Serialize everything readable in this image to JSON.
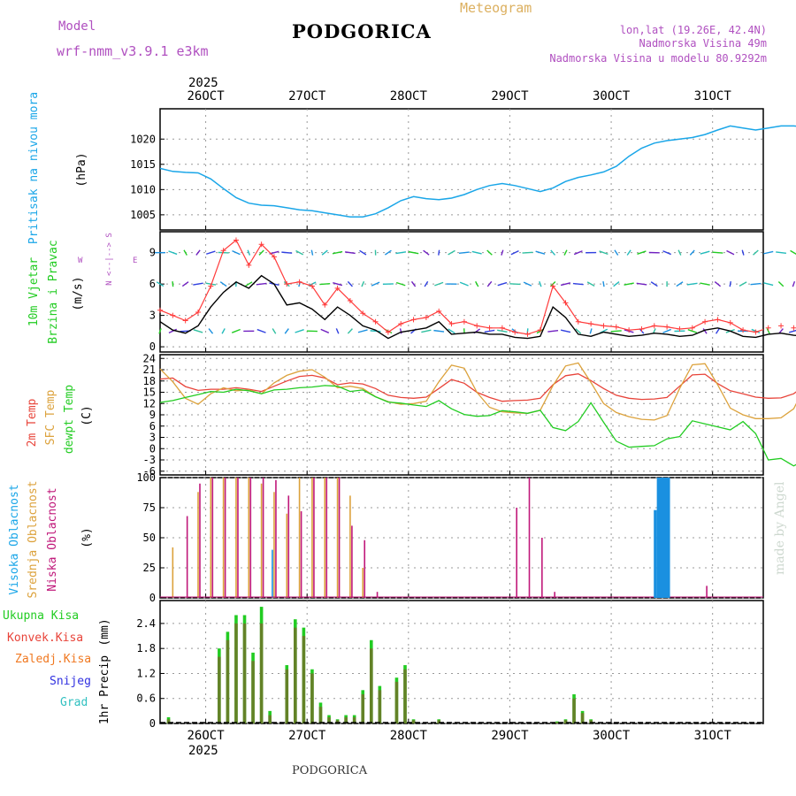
{
  "header": {
    "model_label": "Model",
    "model_name": "wrf-nmm_v3.9.1  e3km",
    "city": "PODGORICA",
    "product": "Meteogram",
    "coords": "lon,lat (19.26E, 42.4N)",
    "elevation": "Nadmorska Visina 49m",
    "model_elevation": "Nadmorska Visina u modelu 80.9292m",
    "footer_city": "PODGORICA",
    "credit": "made by Angel",
    "year": "2025"
  },
  "colors": {
    "pressure": "#1aa6e8",
    "wind_speed": "#000000",
    "gust": "#ff3b3b",
    "temp2m": "#e8443a",
    "sfc_temp": "#dca23c",
    "dewpt": "#22cc22",
    "high_cloud": "#1a90e0",
    "mid_cloud": "#dca23c",
    "low_cloud": "#c0187a",
    "ukupna": "#22cc22",
    "konvek": "#e8443a",
    "zaledj": "#f07820",
    "snijeg": "#3030e0",
    "grad": "#30c0c0",
    "legend_violet": "#b050c0"
  },
  "chart_data": [
    {
      "id": "pressure",
      "type": "line",
      "title": "Pritisak na nivou mora",
      "ylabel": "(hPa)",
      "ylim": [
        1002,
        1026
      ],
      "yticks": [
        "1005",
        "1010",
        "1015",
        "1020"
      ],
      "ytick_values": [
        1005,
        1010,
        1015,
        1020
      ],
      "x_start_day": 25.55,
      "x_step_hours": 3,
      "series": [
        {
          "name": "SLP",
          "values": [
            1014.2,
            1013.6,
            1013.4,
            1013.3,
            1012.1,
            1010.2,
            1008.4,
            1007.3,
            1006.9,
            1006.8,
            1006.4,
            1006.0,
            1005.8,
            1005.4,
            1005.0,
            1004.6,
            1004.6,
            1005.2,
            1006.4,
            1007.8,
            1008.6,
            1008.2,
            1008.0,
            1008.3,
            1009.0,
            1010.0,
            1010.8,
            1011.2,
            1010.8,
            1010.2,
            1009.6,
            1010.3,
            1011.6,
            1012.4,
            1012.9,
            1013.5,
            1014.6,
            1016.6,
            1018.2,
            1019.2,
            1019.7,
            1020.0,
            1020.3,
            1020.9,
            1021.8,
            1022.6,
            1022.2,
            1021.8,
            1022.2,
            1022.6,
            1022.6,
            1022.4,
            1022.1,
            1022.6,
            1022.5,
            1022.0,
            1021.5,
            1020.4,
            1020.2,
            1020.3,
            1020.5,
            1020.1,
            1019.6,
            1019.1,
            1018.6,
            1018.5,
            1018.3,
            1017.6,
            1017.0
          ]
        }
      ]
    },
    {
      "id": "wind",
      "type": "line",
      "title": "10m Vjetar",
      "subtitle": "Brzina i Pravac",
      "ylabel": "(m/s)",
      "ylim": [
        -0.5,
        11
      ],
      "yticks": [
        "0",
        "3",
        "6",
        "9"
      ],
      "ytick_values": [
        0,
        3,
        6,
        9
      ],
      "direction_key": [
        "N",
        "<--|-->",
        "S"
      ],
      "direction_key_ew": [
        "W",
        "E"
      ],
      "x_start_day": 25.55,
      "x_step_hours": 3,
      "series": [
        {
          "name": "speed",
          "values": [
            2.4,
            1.6,
            1.3,
            2.0,
            3.8,
            5.2,
            6.2,
            5.6,
            6.8,
            6.0,
            4.0,
            4.2,
            3.6,
            2.6,
            3.8,
            3.0,
            2.0,
            1.6,
            0.8,
            1.4,
            1.6,
            1.8,
            2.4,
            1.2,
            1.3,
            1.4,
            1.2,
            1.2,
            0.9,
            0.8,
            1.0,
            3.8,
            2.8,
            1.2,
            1.0,
            1.4,
            1.2,
            1.0,
            1.1,
            1.3,
            1.2,
            1.0,
            1.1,
            1.6,
            1.8,
            1.5,
            1.0,
            0.9,
            1.2,
            1.3,
            1.1,
            1.0,
            1.2,
            1.4,
            1.2,
            1.2,
            1.8,
            1.2,
            0.9,
            0.7,
            0.8,
            1.1,
            1.3,
            1.5,
            1.2,
            1.1,
            1.0,
            1.2,
            1.1
          ]
        },
        {
          "name": "gust",
          "values": [
            3.5,
            3.0,
            2.5,
            3.3,
            5.8,
            9.2,
            10.2,
            7.8,
            9.8,
            8.6,
            6.0,
            6.2,
            5.8,
            4.0,
            5.6,
            4.4,
            3.2,
            2.4,
            1.4,
            2.2,
            2.6,
            2.8,
            3.4,
            2.2,
            2.4,
            2.0,
            1.8,
            1.8,
            1.4,
            1.2,
            1.6,
            5.8,
            4.2,
            2.4,
            2.2,
            2.0,
            1.9,
            1.6,
            1.7,
            2.0,
            1.9,
            1.7,
            1.8,
            2.4,
            2.6,
            2.3,
            1.6,
            1.4,
            1.8,
            2.0,
            1.8,
            1.6,
            1.8,
            2.1,
            1.9,
            1.9,
            2.6,
            1.9,
            1.5,
            1.2,
            1.4,
            1.7,
            2.0,
            2.2,
            1.9,
            1.7,
            1.6,
            1.9,
            1.7
          ]
        }
      ]
    },
    {
      "id": "temperature",
      "type": "line",
      "title": "2m Temp",
      "subtitle": "SFC Temp",
      "subtitle2": "dewpt Temp",
      "ylabel": "(C)",
      "ylim": [
        -7,
        25
      ],
      "yticks": [
        "-6",
        "-3",
        "0",
        "3",
        "6",
        "9",
        "12",
        "15",
        "18",
        "21",
        "24"
      ],
      "ytick_values": [
        -6,
        -3,
        0,
        3,
        6,
        9,
        12,
        15,
        18,
        21,
        24
      ],
      "x_start_day": 25.55,
      "x_step_hours": 3,
      "series": [
        {
          "name": "2m Temp",
          "values": [
            18.5,
            18.8,
            16.5,
            15.5,
            15.8,
            15.8,
            16.2,
            15.8,
            15.2,
            16.6,
            18.0,
            19.2,
            19.5,
            18.8,
            17.0,
            17.5,
            17.2,
            16.0,
            14.2,
            13.6,
            13.4,
            13.7,
            16.0,
            18.4,
            17.4,
            15.0,
            13.6,
            12.6,
            12.8,
            12.9,
            13.4,
            17.0,
            19.4,
            19.9,
            18.1,
            16.0,
            14.2,
            13.4,
            13.1,
            13.2,
            13.6,
            16.6,
            19.6,
            19.8,
            17.3,
            15.4,
            14.6,
            13.7,
            13.4,
            13.5,
            14.6,
            17.2,
            19.8,
            19.9,
            17.1,
            15.4,
            15.1,
            14.4,
            14.1,
            14.4,
            15.1,
            17.7,
            19.0,
            17.6,
            15.5,
            14.7,
            15.0,
            16.6,
            18.2
          ]
        },
        {
          "name": "SFC Temp",
          "values": [
            21.2,
            17.8,
            13.4,
            11.8,
            14.6,
            16.2,
            15.4,
            15.6,
            14.6,
            17.5,
            19.5,
            20.6,
            21.0,
            19.0,
            16.2,
            16.6,
            16.0,
            13.8,
            12.5,
            11.8,
            12.0,
            12.6,
            17.8,
            22.2,
            21.4,
            15.0,
            11.0,
            9.8,
            9.5,
            9.4,
            10.2,
            16.8,
            22.0,
            22.8,
            17.6,
            12.0,
            9.6,
            8.5,
            7.8,
            7.6,
            8.8,
            16.0,
            22.3,
            22.6,
            17.0,
            10.8,
            9.0,
            8.0,
            8.0,
            8.2,
            10.6,
            17.2,
            22.6,
            22.4,
            16.0,
            11.4,
            10.2,
            9.6,
            9.8,
            10.2,
            12.0,
            16.4,
            20.4,
            18.4,
            13.6,
            11.0,
            11.4,
            15.6,
            22.0
          ]
        },
        {
          "name": "dewpt Temp",
          "values": [
            12.3,
            12.8,
            13.6,
            14.4,
            15.2,
            15.0,
            15.8,
            15.4,
            14.6,
            15.6,
            15.8,
            16.2,
            16.4,
            16.8,
            16.6,
            15.2,
            15.6,
            13.8,
            12.4,
            12.1,
            11.6,
            11.2,
            12.8,
            10.6,
            9.1,
            8.6,
            8.8,
            10.1,
            9.8,
            9.4,
            10.2,
            5.6,
            4.8,
            7.2,
            12.2,
            7.0,
            2.0,
            0.4,
            0.6,
            0.8,
            2.6,
            3.2,
            7.4,
            6.6,
            5.8,
            5.0,
            7.2,
            4.0,
            -3.0,
            -2.6,
            -4.6,
            -2.8,
            3.0,
            4.6,
            5.0,
            5.6,
            9.2,
            11.6,
            11.4,
            12.4,
            12.6,
            12.2,
            12.4,
            12.6,
            12.2,
            12.4,
            11.8,
            12.4,
            12.6
          ]
        }
      ]
    },
    {
      "id": "clouds",
      "type": "bar",
      "title": "Visoka Oblacnost",
      "subtitle": "Srednja Oblacnost",
      "subtitle2": "Niska Oblacnost",
      "ylabel": "(%)",
      "ylim": [
        0,
        100
      ],
      "yticks": [
        "0",
        "25",
        "50",
        "75",
        "100"
      ],
      "ytick_values": [
        0,
        25,
        50,
        75,
        100
      ],
      "x_start_day": 25.55,
      "x_step_hours": 3,
      "series": [
        {
          "name": "high",
          "values": [
            0,
            0,
            0,
            0,
            0,
            0,
            0,
            0,
            0,
            40,
            0,
            0,
            0,
            0,
            0,
            0,
            0,
            0,
            0,
            0,
            0,
            0,
            0,
            0,
            0,
            0,
            0,
            0,
            0,
            0,
            0,
            0,
            0,
            0,
            0,
            0,
            0,
            0,
            0,
            0,
            0,
            0,
            0,
            0,
            0,
            0,
            0,
            0,
            0,
            0,
            0,
            0,
            0,
            0,
            0,
            0,
            0,
            0,
            0,
            0,
            0,
            0,
            0,
            0,
            0,
            0,
            0,
            0,
            0
          ]
        },
        {
          "name": "mid",
          "values": [
            0,
            42,
            0,
            88,
            100,
            100,
            100,
            100,
            95,
            88,
            70,
            100,
            100,
            100,
            100,
            85,
            25,
            0,
            0,
            0,
            0,
            0,
            0,
            0,
            0,
            0,
            0,
            0,
            0,
            0,
            0,
            0,
            0,
            0,
            0,
            0,
            0,
            0,
            0,
            0,
            0,
            0,
            0,
            0,
            0,
            0,
            0,
            0,
            0,
            0,
            0,
            0,
            0,
            0,
            0,
            0,
            0,
            0,
            0,
            100,
            95,
            100,
            0,
            0,
            100,
            100,
            100,
            100,
            100
          ]
        },
        {
          "name": "low",
          "values": [
            0,
            0,
            68,
            95,
            100,
            100,
            100,
            100,
            100,
            98,
            85,
            72,
            100,
            100,
            100,
            60,
            48,
            5,
            0,
            0,
            0,
            0,
            0,
            0,
            0,
            0,
            0,
            0,
            75,
            100,
            50,
            5,
            0,
            0,
            0,
            0,
            0,
            0,
            0,
            0,
            0,
            0,
            0,
            10,
            0,
            0,
            0,
            0,
            0,
            0,
            0,
            0,
            0,
            0,
            0,
            0,
            0,
            0,
            15,
            60,
            85,
            70,
            58,
            40,
            50,
            70,
            80,
            100,
            100
          ]
        }
      ]
    },
    {
      "id": "precip",
      "type": "bar",
      "title": "1hr Precip",
      "ylabel": "(mm)",
      "ylim": [
        0,
        2.95
      ],
      "yticks": [
        "0",
        "0.6",
        "1.2",
        "1.8",
        "2.4"
      ],
      "ytick_values": [
        0,
        0.6,
        1.2,
        1.8,
        2.4
      ],
      "legend": [
        "Ukupna  Kisa",
        "Konvek.Kisa",
        "Zaledj.Kisa",
        "Snijeg",
        "Grad"
      ],
      "x_start_day": 25.55,
      "x_step_hours": 2,
      "series": [
        {
          "name": "Ukupna Kisa",
          "values": [
            0,
            0.15,
            0,
            0,
            0,
            0,
            0,
            1.8,
            2.2,
            2.6,
            2.6,
            1.7,
            2.8,
            0.3,
            0,
            1.4,
            2.5,
            2.3,
            1.3,
            0.5,
            0.2,
            0.1,
            0.2,
            0.2,
            0.8,
            2.0,
            0.9,
            0,
            1.1,
            1.4,
            0.1,
            0,
            0,
            0.1,
            0,
            0,
            0,
            0,
            0,
            0,
            0,
            0,
            0,
            0,
            0,
            0,
            0,
            0.05,
            0.1,
            0.7,
            0.3,
            0.1,
            0,
            0,
            0,
            0,
            0,
            0,
            0,
            0,
            0,
            0,
            0,
            0,
            0,
            0,
            0,
            0,
            0,
            0,
            0,
            0,
            0,
            0,
            0,
            0,
            0,
            0,
            0,
            0,
            0,
            0,
            0,
            0,
            0,
            0,
            0,
            0,
            0,
            0,
            0,
            0,
            0,
            0,
            0,
            0,
            0,
            0,
            0,
            0,
            0,
            0,
            0,
            0,
            0,
            0,
            0,
            0,
            0,
            0,
            0,
            0,
            0.05,
            0,
            0,
            0,
            0,
            0.15,
            0,
            0,
            0.1,
            0.05,
            0.1,
            0.25,
            0.1,
            0.35,
            0.2
          ]
        },
        {
          "name": "Konvek.Kisa",
          "values": [
            0,
            0.1,
            0,
            0,
            0,
            0,
            0,
            1.6,
            2.0,
            2.4,
            2.4,
            1.5,
            2.4,
            0.2,
            0,
            1.3,
            2.3,
            2.1,
            1.2,
            0.4,
            0.15,
            0.08,
            0.15,
            0.15,
            0.7,
            1.8,
            0.8,
            0,
            1.0,
            1.3,
            0.08,
            0,
            0,
            0.08,
            0,
            0,
            0,
            0,
            0,
            0,
            0,
            0,
            0,
            0,
            0,
            0,
            0,
            0.03,
            0.08,
            0.6,
            0.25,
            0.08,
            0,
            0,
            0,
            0,
            0,
            0,
            0,
            0,
            0,
            0,
            0,
            0,
            0,
            0,
            0,
            0,
            0,
            0,
            0,
            0,
            0,
            0,
            0,
            0,
            0,
            0,
            0,
            0,
            0,
            0,
            0,
            0,
            0,
            0,
            0,
            0,
            0,
            0,
            0,
            0,
            0,
            0,
            0,
            0,
            0,
            0,
            0,
            0,
            0,
            0,
            0,
            0,
            0,
            0,
            0,
            0,
            0,
            0,
            0,
            0,
            0,
            0,
            0,
            0,
            0,
            0,
            0,
            0,
            0,
            0,
            0,
            0,
            0,
            0,
            0
          ]
        }
      ]
    }
  ],
  "x_axis": {
    "labels": [
      "26OCT",
      "27OCT",
      "28OCT",
      "29OCT",
      "30OCT",
      "31OCT"
    ],
    "label_days": [
      26,
      27,
      28,
      29,
      30,
      31
    ],
    "x_min_day": 25.55,
    "x_max_day": 31.5
  }
}
